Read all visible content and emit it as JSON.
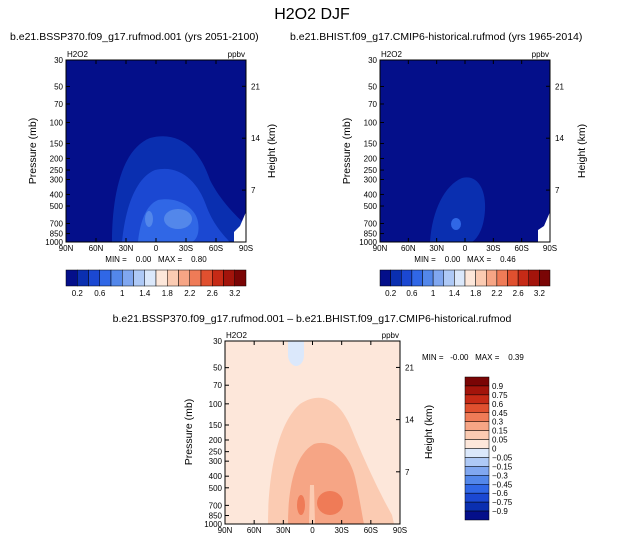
{
  "figure_title": "H2O2 DJF",
  "chart_data": [
    {
      "type": "heatmap",
      "panel": "top-left",
      "title": "b.e21.BSSP370.f09_g17.rufmod.001 (yrs 2051-2100)",
      "variable": "H2O2",
      "units": "ppbv",
      "ylabel": "Pressure (mb)",
      "ylabel_right": "Height (km)",
      "x_ticks": [
        "90N",
        "60N",
        "30N",
        "0",
        "30S",
        "60S",
        "90S"
      ],
      "y_ticks": [
        "30",
        "50",
        "70",
        "100",
        "150",
        "200",
        "250",
        "300",
        "400",
        "500",
        "700",
        "850",
        "1000"
      ],
      "height_ticks": [
        "21",
        "14",
        "7"
      ],
      "stats_text": "MIN =    0.00   MAX =    0.80",
      "min": 0.0,
      "max": 0.8,
      "colorbar_levels": [
        "0.2",
        "0.6",
        "1",
        "1.4",
        "1.8",
        "2.2",
        "2.6",
        "3.2"
      ]
    },
    {
      "type": "heatmap",
      "panel": "top-right",
      "title": "b.e21.BHIST.f09_g17.CMIP6-historical.rufmod (yrs 1965-2014)",
      "variable": "H2O2",
      "units": "ppbv",
      "ylabel": "Pressure (mb)",
      "ylabel_right": "Height (km)",
      "x_ticks": [
        "90N",
        "60N",
        "30N",
        "0",
        "30S",
        "60S",
        "90S"
      ],
      "y_ticks": [
        "30",
        "50",
        "70",
        "100",
        "150",
        "200",
        "250",
        "300",
        "400",
        "500",
        "700",
        "850",
        "1000"
      ],
      "height_ticks": [
        "21",
        "14",
        "7"
      ],
      "stats_text": "MIN =    0.00   MAX =    0.46",
      "min": 0.0,
      "max": 0.46,
      "colorbar_levels": [
        "0.2",
        "0.6",
        "1",
        "1.4",
        "1.8",
        "2.2",
        "2.6",
        "3.2"
      ]
    },
    {
      "type": "heatmap",
      "panel": "bottom",
      "title": "b.e21.BSSP370.f09_g17.rufmod.001 – b.e21.BHIST.f09_g17.CMIP6-historical.rufmod",
      "variable": "H2O2",
      "units": "ppbv",
      "ylabel": "Pressure (mb)",
      "ylabel_right": "Height (km)",
      "x_ticks": [
        "90N",
        "60N",
        "30N",
        "0",
        "30S",
        "60S",
        "90S"
      ],
      "y_ticks": [
        "30",
        "50",
        "70",
        "100",
        "150",
        "200",
        "250",
        "300",
        "400",
        "500",
        "700",
        "850",
        "1000"
      ],
      "height_ticks": [
        "21",
        "14",
        "7"
      ],
      "stats_text": "MIN =   -0.00   MAX =    0.39",
      "min": -0.0,
      "max": 0.39,
      "colorbar_levels": [
        "0.9",
        "0.75",
        "0.6",
        "0.45",
        "0.3",
        "0.15",
        "0.05",
        "0",
        "−0.05",
        "−0.15",
        "−0.3",
        "−0.45",
        "−0.6",
        "−0.75",
        "−0.9"
      ]
    }
  ],
  "colors": {
    "seq": [
      "#040f8a",
      "#0a2fb0",
      "#1b48d2",
      "#3067e6",
      "#5387ea",
      "#80a7f0",
      "#aec9f6",
      "#dbe8fb",
      "#fde7da",
      "#fbcbb2",
      "#f6a585",
      "#ef7b57",
      "#e0502f",
      "#c62a16",
      "#a3140b",
      "#7a0505"
    ],
    "diff_pos": [
      "#7a0505",
      "#a3140b",
      "#c62a16",
      "#e0502f",
      "#ef7b57",
      "#f6a585",
      "#fbcbb2",
      "#fde7da"
    ],
    "diff_neg": [
      "#dbe8fb",
      "#aec9f6",
      "#80a7f0",
      "#5387ea",
      "#3067e6",
      "#1b48d2",
      "#0a2fb0",
      "#040f8a"
    ]
  }
}
